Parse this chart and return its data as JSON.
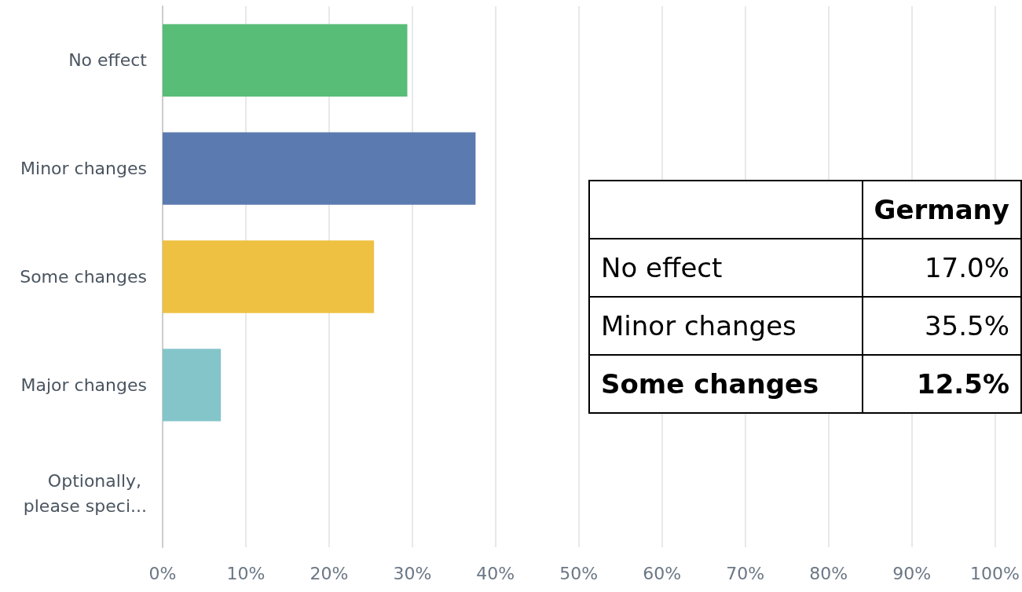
{
  "chart_data": [
    {
      "type": "bar",
      "orientation": "horizontal",
      "categories": [
        "No effect",
        "Minor changes",
        "Some changes",
        "Major changes",
        "Optionally, please speci..."
      ],
      "values": [
        29.4,
        37.6,
        25.4,
        7.0,
        0
      ],
      "colors": [
        "#58bd77",
        "#5b7ab0",
        "#efc142",
        "#84c5ca",
        "#cccccc"
      ],
      "xlim": [
        0,
        100
      ],
      "xticks": [
        {
          "value": 0,
          "label": "0%"
        },
        {
          "value": 10,
          "label": "10%"
        },
        {
          "value": 20,
          "label": "20%"
        },
        {
          "value": 30,
          "label": "30%"
        },
        {
          "value": 40,
          "label": "40%"
        },
        {
          "value": 50,
          "label": "50%"
        },
        {
          "value": 60,
          "label": "60%"
        },
        {
          "value": 70,
          "label": "70%"
        },
        {
          "value": 80,
          "label": "80%"
        },
        {
          "value": 90,
          "label": "90%"
        },
        {
          "value": 100,
          "label": "100%"
        }
      ],
      "grid": "x"
    },
    {
      "type": "other",
      "title": "Germany",
      "categories": [
        "No effect",
        "Minor changes",
        "Some changes"
      ],
      "value_labels": [
        "17.0%",
        "35.5%",
        "12.5%"
      ]
    }
  ]
}
